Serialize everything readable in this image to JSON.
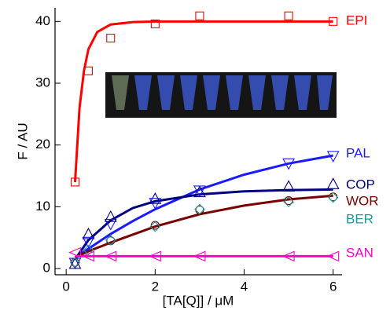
{
  "chart_data": {
    "type": "scatter",
    "x_label": "[TA[Q]] / μM",
    "y_label": "F / AU",
    "xlim": [
      -0.25,
      6.2
    ],
    "xticks": [
      0,
      2,
      4,
      6
    ],
    "ylim": [
      -1,
      42.2
    ],
    "yticks": [
      0,
      10,
      20,
      30,
      40
    ],
    "series": [
      {
        "name": "EPI",
        "color": "#ff0000",
        "marker": "square",
        "x": [
          0.2,
          0.5,
          1,
          2,
          3,
          5,
          6
        ],
        "values": [
          14,
          32,
          37.3,
          39.6,
          40.9,
          40.9,
          40
        ],
        "fit": {
          "x": [
            0.2,
            0.3,
            0.4,
            0.5,
            0.7,
            1,
            1.5,
            2,
            3,
            4,
            5,
            6
          ],
          "values": [
            14,
            26,
            32,
            35.5,
            38.3,
            39.5,
            39.9,
            40,
            40,
            40,
            40,
            40
          ]
        }
      },
      {
        "name": "PAL",
        "color": "#1a1aff",
        "marker": "triangle-down",
        "x": [
          0.2,
          0.5,
          1,
          2,
          3,
          5,
          6
        ],
        "values": [
          0.9,
          4.3,
          7.2,
          10.6,
          12.6,
          17,
          18.2
        ],
        "fit": {
          "x": [
            0.2,
            0.5,
            1,
            1.5,
            2,
            3,
            4,
            5,
            6
          ],
          "values": [
            1.8,
            3.2,
            5.6,
            7.7,
            9.6,
            12.8,
            15.2,
            17,
            18.3
          ]
        }
      },
      {
        "name": "COP",
        "color": "#000080",
        "marker": "triangle-up",
        "x": [
          0.2,
          0.5,
          1,
          2,
          3,
          5,
          6
        ],
        "values": [
          0.8,
          5.6,
          8.4,
          11.3,
          12.4,
          13.3,
          13.7
        ],
        "fit": {
          "x": [
            0.2,
            0.5,
            1,
            1.5,
            2,
            3,
            4,
            5,
            6
          ],
          "values": [
            1.5,
            4.6,
            7.8,
            9.8,
            10.9,
            12,
            12.5,
            12.7,
            12.8
          ]
        }
      },
      {
        "name": "WOR",
        "color": "#7a0000",
        "marker": "circle",
        "x": [
          0.2,
          1,
          2,
          3,
          5,
          6
        ],
        "values": [
          1,
          4.5,
          7,
          9.5,
          11,
          11.6
        ],
        "fit": {
          "x": [
            0.2,
            0.5,
            1,
            2,
            3,
            4,
            5,
            6
          ],
          "values": [
            1.8,
            2.8,
            4.2,
            6.8,
            8.8,
            10.2,
            11.2,
            11.8
          ]
        }
      },
      {
        "name": "BER",
        "color": "#1a9a9a",
        "marker": "diamond",
        "x": [
          0.2,
          0.5,
          1,
          2,
          3,
          5,
          6
        ],
        "values": [
          1,
          3,
          4.6,
          6.8,
          9.6,
          10.8,
          11.5
        ]
      },
      {
        "name": "SAN",
        "color": "#ff00cc",
        "marker": "triangle-left",
        "x": [
          0.2,
          0.5,
          1,
          2,
          3,
          5,
          6
        ],
        "values": [
          2.6,
          2,
          2,
          2,
          2,
          2,
          2
        ],
        "fit": {
          "x": [
            0.2,
            6
          ],
          "values": [
            2,
            2
          ]
        }
      }
    ]
  }
}
